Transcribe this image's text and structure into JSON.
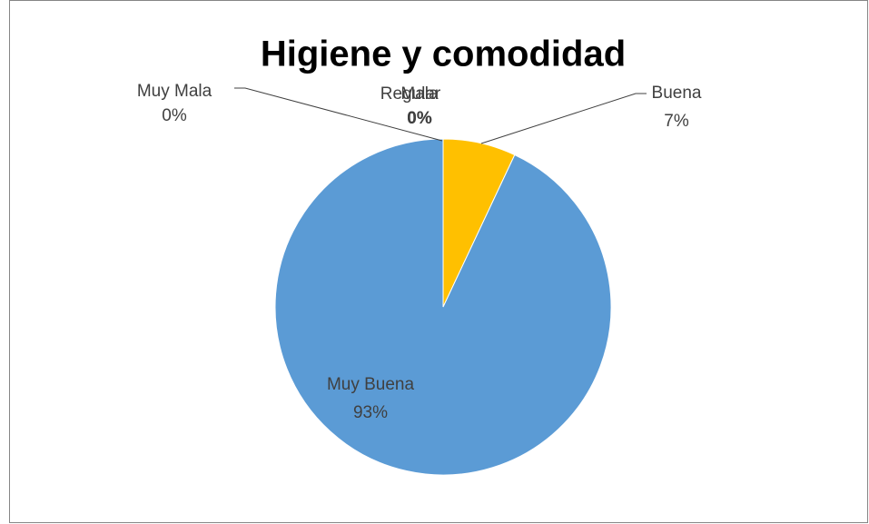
{
  "chart_data": {
    "type": "pie",
    "title": "Higiene y comodidad",
    "categories": [
      "Muy Mala",
      "Mala",
      "Regular",
      "Buena",
      "Muy Buena"
    ],
    "values": [
      0,
      0,
      0,
      7,
      93
    ],
    "value_labels": [
      "0%",
      "0%",
      "0%",
      "7%",
      "93%"
    ],
    "colors": [
      "#ed7d31",
      "#a5a5a5",
      "#4472c4",
      "#ffc000",
      "#5b9bd5"
    ]
  }
}
